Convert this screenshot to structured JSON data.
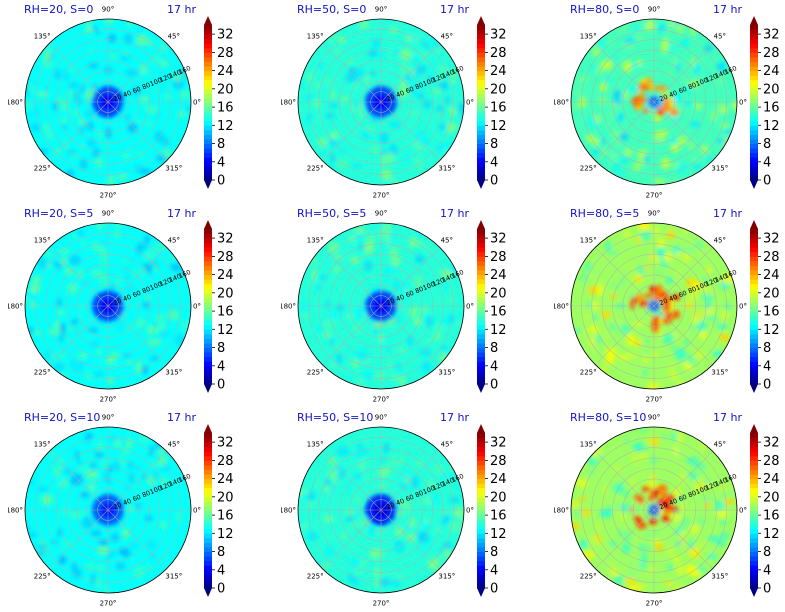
{
  "figure": {
    "layout": {
      "rows": 3,
      "cols": 3
    },
    "colormap": "jet",
    "colorbar": {
      "min": 0,
      "max": 34,
      "ticks": [
        "0",
        "4",
        "8",
        "12",
        "16",
        "20",
        "24",
        "28",
        "32"
      ],
      "extend": "both"
    },
    "angle_labels": {
      "a90": "90°",
      "a135": "135°",
      "a180": "180°",
      "a225": "225°",
      "a270": "270°",
      "a315": "315°",
      "a0": "0°",
      "a45": "45°"
    },
    "radial_ticks": [
      "20",
      "40",
      "60",
      "80",
      "100",
      "120",
      "140",
      "160"
    ]
  },
  "chart_data": [
    {
      "type": "heatmap",
      "projection": "polar",
      "title_left": "RH=20, S=0",
      "title_right": "17 hr",
      "rh": 20,
      "s": 0,
      "rmax": 160,
      "background_value": 13,
      "center_value": 6
    },
    {
      "type": "heatmap",
      "projection": "polar",
      "title_left": "RH=50, S=0",
      "title_right": "17 hr",
      "rh": 50,
      "s": 0,
      "rmax": 160,
      "background_value": 14,
      "center_value": 6
    },
    {
      "type": "heatmap",
      "projection": "polar",
      "title_left": "RH=80, S=0",
      "title_right": "17 hr",
      "rh": 80,
      "s": 0,
      "rmax": 160,
      "background_value": 15,
      "center_value": 8,
      "ring_value": 24
    },
    {
      "type": "heatmap",
      "projection": "polar",
      "title_left": "RH=20, S=5",
      "title_right": "17 hr",
      "rh": 20,
      "s": 5,
      "rmax": 160,
      "background_value": 13,
      "center_value": 6
    },
    {
      "type": "heatmap",
      "projection": "polar",
      "title_left": "RH=50, S=5",
      "title_right": "17 hr",
      "rh": 50,
      "s": 5,
      "rmax": 160,
      "background_value": 14,
      "center_value": 6
    },
    {
      "type": "heatmap",
      "projection": "polar",
      "title_left": "RH=80, S=5",
      "title_right": "17 hr",
      "rh": 80,
      "s": 5,
      "rmax": 160,
      "background_value": 18,
      "center_value": 8,
      "ring_value": 26
    },
    {
      "type": "heatmap",
      "projection": "polar",
      "title_left": "RH=20, S=10",
      "title_right": "17 hr",
      "rh": 20,
      "s": 10,
      "rmax": 160,
      "background_value": 13,
      "center_value": 7
    },
    {
      "type": "heatmap",
      "projection": "polar",
      "title_left": "RH=50, S=10",
      "title_right": "17 hr",
      "rh": 50,
      "s": 10,
      "rmax": 160,
      "background_value": 14,
      "center_value": 5
    },
    {
      "type": "heatmap",
      "projection": "polar",
      "title_left": "RH=80, S=10",
      "title_right": "17 hr",
      "rh": 80,
      "s": 10,
      "rmax": 160,
      "background_value": 18,
      "center_value": 8,
      "ring_value": 27
    }
  ]
}
